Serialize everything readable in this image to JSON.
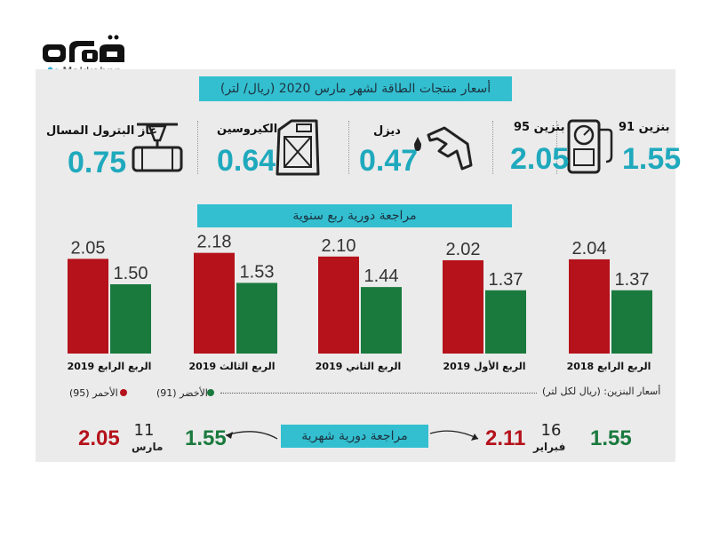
{
  "brand": {
    "logo_text": "مكة",
    "handle": "Makkahnp"
  },
  "header": {
    "title": "أسعار منتجات الطاقة لشهر مارس 2020 (ريال/ لتر)"
  },
  "products": [
    {
      "label": "بنزين 91",
      "value": "1.55",
      "icon": "gas-pump-icon"
    },
    {
      "label": "بنزين 95",
      "value": "2.05",
      "icon": "gas-pump-icon"
    },
    {
      "label": "ديزل",
      "value": "0.47",
      "icon": "fuel-nozzle-icon"
    },
    {
      "label": "الكيروسين",
      "value": "0.64",
      "icon": "jerrycan-icon"
    },
    {
      "label": "غاز البترول المسال",
      "value": "0.75",
      "icon": "valve-pipe-icon"
    }
  ],
  "quarterly": {
    "title": "مراجعة دورية ربع سنوية"
  },
  "chart_data": {
    "type": "bar",
    "title": "مراجعة دورية ربع سنوية",
    "categories": [
      "الربع الرابع 2019",
      "الربع الثالث 2019",
      "الربع الثاني 2019",
      "الربع الأول 2019",
      "الربع الرابع 2018"
    ],
    "series": [
      {
        "name": "الأحمر (95)",
        "color": "#b5121b",
        "values": [
          2.05,
          2.18,
          2.1,
          2.02,
          2.04
        ],
        "labels": [
          "2.05",
          "2.18",
          "2.10",
          "2.02",
          "2.04"
        ]
      },
      {
        "name": "الأخضر (91)",
        "color": "#1a7a3e",
        "values": [
          1.5,
          1.53,
          1.44,
          1.37,
          1.37
        ],
        "labels": [
          "1.50",
          "1.53",
          "1.44",
          "1.37",
          "1.37"
        ]
      }
    ],
    "ylim": [
      0,
      2.6
    ],
    "xlabel": "",
    "ylabel": "",
    "legend_position": "bottom"
  },
  "legend": {
    "caption": "أسعار البنزين: (ريال لكل لتر)",
    "red_label": "الأحمر (95)",
    "green_label": "الأخضر (91)",
    "red_color": "#b5121b",
    "green_color": "#1a7a3e"
  },
  "monthly": {
    "title": "مراجعة دورية شهرية",
    "march": {
      "day": "11",
      "month": "مارس",
      "red": "2.05",
      "green": "1.55"
    },
    "february": {
      "day": "16",
      "month": "فبراير",
      "red": "2.11",
      "green": "1.55"
    }
  },
  "colors": {
    "accent": "#33bfd0",
    "value_blue": "#1fa9bd",
    "red": "#b5121b",
    "green": "#1a7a3e"
  }
}
